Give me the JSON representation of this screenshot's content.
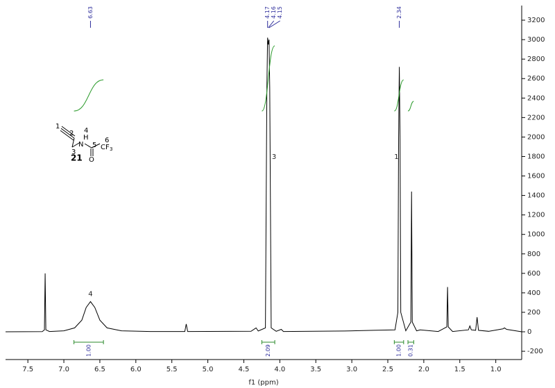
{
  "chart_data": {
    "type": "line",
    "x_label": "f1 (ppm)",
    "xlim": [
      7.81,
      0.64
    ],
    "ylim": [
      -285,
      3350
    ],
    "xticks": [
      7.5,
      {
        "value": 7,
        "label": "7.0"
      },
      6.5,
      {
        "value": 6,
        "label": "6.0"
      },
      5.5,
      {
        "value": 5,
        "label": "5.0"
      },
      4.5,
      {
        "value": 4,
        "label": "4.0"
      },
      3.5,
      {
        "value": 3,
        "label": "3.0"
      },
      2.5,
      {
        "value": 2,
        "label": "2.0"
      },
      1.5,
      {
        "value": 1,
        "label": "1.0"
      }
    ],
    "yticks": [
      -200,
      0,
      200,
      400,
      600,
      800,
      1000,
      1200,
      1400,
      1600,
      1800,
      2000,
      2200,
      2400,
      2600,
      2800,
      3000,
      3200
    ],
    "color": "#000000",
    "x": [
      7.81,
      7.3,
      7.27,
      7.26,
      7.25,
      7.2,
      7.0,
      6.85,
      6.75,
      6.69,
      6.63,
      6.57,
      6.5,
      6.4,
      6.2,
      5.8,
      5.32,
      5.3,
      5.28,
      4.4,
      4.33,
      4.3,
      4.2,
      4.18,
      4.17,
      4.16,
      4.15,
      4.14,
      4.12,
      4.05,
      3.98,
      3.95,
      3.1,
      2.7,
      2.4,
      2.36,
      2.35,
      2.34,
      2.33,
      2.32,
      2.25,
      2.18,
      2.17,
      2.16,
      2.1,
      2.05,
      1.8,
      1.68,
      1.67,
      1.66,
      1.6,
      1.38,
      1.36,
      1.34,
      1.28,
      1.26,
      1.24,
      1.1,
      0.9,
      0.88,
      0.85,
      0.64
    ],
    "values": [
      0,
      2,
      20,
      600,
      20,
      3,
      10,
      40,
      120,
      250,
      310,
      250,
      120,
      40,
      10,
      3,
      3,
      80,
      3,
      5,
      40,
      8,
      40,
      2500,
      3020,
      2950,
      3000,
      2500,
      40,
      5,
      25,
      3,
      8,
      15,
      20,
      200,
      2000,
      2720,
      2000,
      200,
      10,
      100,
      1440,
      100,
      10,
      20,
      3,
      50,
      460,
      50,
      3,
      20,
      60,
      20,
      15,
      150,
      15,
      5,
      30,
      40,
      25,
      0
    ],
    "peak_labels": [
      6.63,
      4.17,
      4.16,
      4.15,
      2.34
    ],
    "integrals": [
      {
        "range": [
          6.86,
          6.45
        ],
        "value": {
          "value": 1,
          "label": "1.00"
        }
      },
      {
        "range": [
          4.25,
          4.07
        ],
        "value": {
          "value": 2.09,
          "label": "2.09"
        }
      },
      {
        "range": [
          2.41,
          2.28
        ],
        "value": {
          "value": 1,
          "label": "1.00"
        }
      },
      {
        "range": [
          2.22,
          2.14
        ],
        "value": {
          "value": 0.31,
          "label": "0.31"
        }
      }
    ],
    "annotations": [
      {
        "text": "4",
        "x": 6.63,
        "y": 390
      },
      {
        "text": "3",
        "x": 4.08,
        "y": 1795
      },
      {
        "text": "1",
        "x": 2.38,
        "y": 1795
      }
    ]
  },
  "structure": {
    "compound": "21",
    "atoms": [
      "1",
      "2",
      "3",
      "4",
      "N",
      "H",
      "5",
      "6",
      "O"
    ],
    "cf": "CF",
    "cf_sub": "3"
  }
}
